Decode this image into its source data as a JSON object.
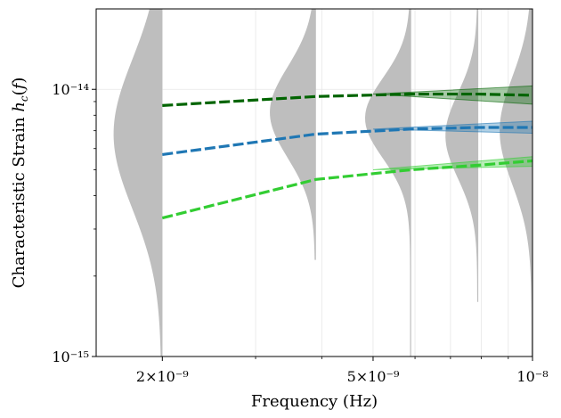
{
  "chart_data": {
    "type": "line",
    "xscale": "log",
    "yscale": "log",
    "xlim": [
      1.5e-09,
      1e-08
    ],
    "ylim": [
      1e-15,
      2e-14
    ],
    "xlabel": "Frequency (Hz)",
    "ylabel": "Characteristic Strain h_c(f)",
    "x_ticks": [
      {
        "value": 2e-09,
        "label": "2×10⁻⁹"
      },
      {
        "value": 5e-09,
        "label": "5×10⁻⁹"
      },
      {
        "value": 1e-08,
        "label": "10⁻⁸"
      }
    ],
    "y_ticks": [
      {
        "value": 1e-15,
        "label": "10⁻¹⁵"
      },
      {
        "value": 1e-14,
        "label": "10⁻¹⁴"
      }
    ],
    "grid": true,
    "x": [
      2e-09,
      3.9e-09,
      5.9e-09,
      7.9e-09,
      1e-08
    ],
    "series": [
      {
        "name": "dark-green",
        "color": "#006400",
        "values": [
          8.7e-15,
          9.4e-15,
          9.6e-15,
          9.6e-15,
          9.5e-15
        ],
        "band_x": [
          5e-09,
          1e-08
        ],
        "band_low": [
          9.6e-15,
          8.8e-15
        ],
        "band_high": [
          9.6e-15,
          1.03e-14
        ]
      },
      {
        "name": "blue",
        "color": "#1f77b4",
        "values": [
          5.7e-15,
          6.8e-15,
          7.1e-15,
          7.2e-15,
          7.2e-15
        ],
        "band_x": [
          5e-09,
          1e-08
        ],
        "band_low": [
          7.1e-15,
          6.85e-15
        ],
        "band_high": [
          7.1e-15,
          7.6e-15
        ]
      },
      {
        "name": "light-green",
        "color": "#32cd32",
        "values": [
          3.3e-15,
          4.6e-15,
          5e-15,
          5.2e-15,
          5.4e-15
        ],
        "band_x": [
          5e-09,
          1e-08
        ],
        "band_low": [
          5e-15,
          5.15e-15
        ],
        "band_high": [
          5e-15,
          5.6e-15
        ]
      }
    ],
    "violins": [
      {
        "x": 2e-09,
        "color": "#bebebe",
        "peak": 6.8e-15,
        "spread": 0.28,
        "width_decades": 0.09,
        "ymin": 1e-15,
        "ymax": 2e-14
      },
      {
        "x": 3.9e-09,
        "color": "#bebebe",
        "peak": 8.2e-15,
        "spread": 0.17,
        "width_decades": 0.085,
        "ymin": 2.3e-15,
        "ymax": 2e-14
      },
      {
        "x": 5.9e-09,
        "color": "#bebebe",
        "peak": 7.8e-15,
        "spread": 0.15,
        "width_decades": 0.085,
        "ymin": 1e-15,
        "ymax": 2e-14
      },
      {
        "x": 7.9e-09,
        "color": "#bebebe",
        "peak": 6.7e-15,
        "spread": 0.16,
        "width_decades": 0.06,
        "ymin": 1.6e-15,
        "ymax": 2e-14
      },
      {
        "x": 1e-08,
        "color": "#bebebe",
        "peak": 7e-15,
        "spread": 0.2,
        "width_decades": 0.06,
        "ymin": 1e-15,
        "ymax": 2e-14
      }
    ]
  }
}
